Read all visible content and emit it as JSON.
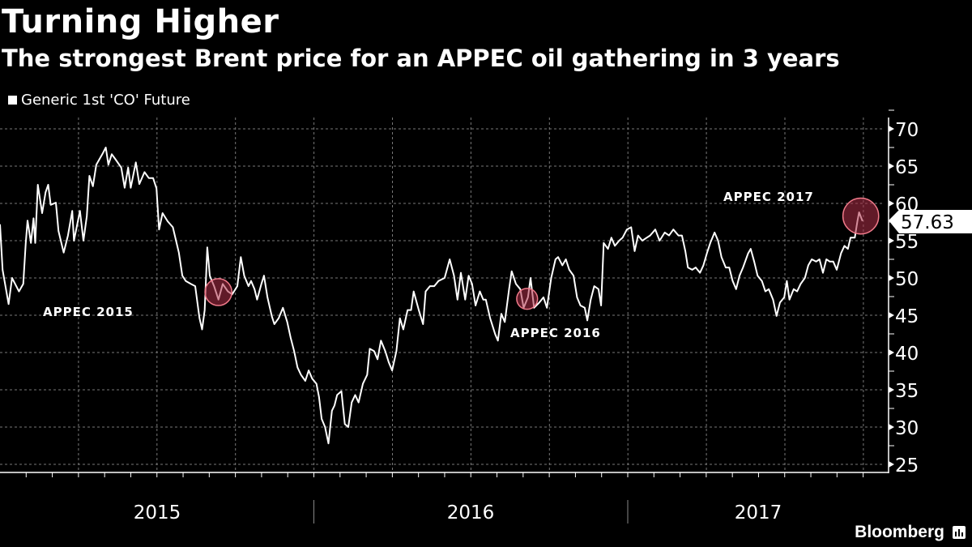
{
  "colors": {
    "background": "#000000",
    "line": "#ffffff",
    "highlight_fill": "#b03048",
    "highlight_stroke": "#f07a8a",
    "tag_bg": "#ffffff",
    "tag_text": "#000000"
  },
  "chart_data": {
    "type": "line",
    "title": "Turning Higher",
    "subtitle": "The strongest Brent price for an APPEC oil gathering in 3 years",
    "legend": [
      {
        "label": "Generic 1st 'CO' Future",
        "placement": "top-left"
      }
    ],
    "x_unit": "days since 2015-01-01",
    "xlim": [
      0,
      1003
    ],
    "ylim": [
      24,
      71.5
    ],
    "yticks": [
      25,
      30,
      35,
      40,
      45,
      50,
      55,
      60,
      65,
      70
    ],
    "xtick_labels": [
      "2015",
      "2016",
      "2017"
    ],
    "grid": true,
    "last_value_label": "57.63",
    "series": [
      {
        "name": "Generic 1st 'CO' Future",
        "x": [
          0,
          3,
          10,
          14,
          22,
          27,
          30,
          32,
          36,
          39,
          41,
          44,
          49,
          53,
          56,
          59,
          65,
          68,
          74,
          79,
          84,
          86,
          93,
          97,
          101,
          104,
          108,
          112,
          119,
          123,
          126,
          130,
          135,
          141,
          145,
          149,
          152,
          158,
          162,
          168,
          173,
          178,
          182,
          185,
          189,
          195,
          201,
          208,
          212,
          216,
          222,
          227,
          232,
          235,
          238,
          241,
          244,
          249,
          254,
          259,
          265,
          270,
          276,
          280,
          284,
          289,
          292,
          296,
          299,
          304,
          307,
          311,
          316,
          319,
          324,
          329,
          334,
          338,
          342,
          346,
          350,
          355,
          359,
          363,
          368,
          371,
          374,
          378,
          382,
          386,
          389,
          392,
          397,
          401,
          405,
          409,
          413,
          417,
          422,
          427,
          430,
          435,
          439,
          443,
          448,
          452,
          456,
          461,
          465,
          469,
          474,
          478,
          481,
          487,
          492,
          495,
          500,
          505,
          510,
          517,
          523,
          528,
          532,
          536,
          541,
          545,
          549,
          553,
          558,
          562,
          565,
          570,
          576,
          579,
          583,
          587,
          592,
          595,
          600,
          605,
          609,
          614,
          617,
          621,
          627,
          632,
          636,
          641,
          646,
          649,
          654,
          658,
          662,
          667,
          671,
          675,
          680,
          683,
          687,
          691,
          696,
          699,
          702,
          707,
          711,
          715,
          720,
          724,
          729,
          734,
          738,
          742,
          747,
          752,
          756,
          762,
          767,
          773,
          778,
          783,
          789,
          793,
          797,
          800,
          805,
          809,
          814,
          818,
          822,
          826,
          831,
          835,
          839,
          844,
          848,
          852,
          856,
          860,
          864,
          870,
          873,
          877,
          881,
          886,
          890,
          894,
          899,
          903,
          907,
          912,
          915,
          918,
          923,
          927,
          931,
          936,
          940,
          944,
          949,
          953,
          957,
          961,
          965,
          969,
          973,
          978,
          982,
          986,
          989,
          994,
          997,
          999,
          1003
        ],
        "y": [
          57.2,
          51.1,
          46.5,
          50,
          48.2,
          49.2,
          54.7,
          57.7,
          54.7,
          58,
          54.7,
          62.5,
          58.7,
          61.5,
          62.5,
          59.8,
          60.1,
          56.3,
          53.4,
          55.7,
          59,
          55,
          59,
          55,
          58.3,
          63.7,
          62.3,
          65.2,
          66.6,
          67.5,
          65.2,
          66.6,
          65.8,
          64.8,
          62.1,
          64.8,
          62.1,
          65.5,
          62.6,
          64.2,
          63.4,
          63.4,
          62,
          56.5,
          58.7,
          57.6,
          56.8,
          53.4,
          50.3,
          49.6,
          49.2,
          48.9,
          44.6,
          43.1,
          45.7,
          54.1,
          50.3,
          48.9,
          47.1,
          49.2,
          48.2,
          47.8,
          48.9,
          52.8,
          50.3,
          48.9,
          49.6,
          48.5,
          47.1,
          49.2,
          50.3,
          47.4,
          44.9,
          43.8,
          44.6,
          46,
          44.1,
          42,
          40.2,
          38,
          37,
          36.2,
          37.6,
          36.5,
          35.8,
          34,
          31.1,
          30,
          27.8,
          32.2,
          32.9,
          34.3,
          34.8,
          30.4,
          30,
          33.3,
          34.3,
          33.3,
          35.8,
          37,
          40.5,
          40.2,
          39.1,
          41.6,
          40.2,
          38.7,
          37.6,
          40.2,
          44.6,
          43.1,
          45.7,
          45.7,
          48.2,
          45.7,
          43.8,
          48.2,
          48.9,
          48.9,
          49.6,
          50,
          52.5,
          50.3,
          47.1,
          50.7,
          47.1,
          50.3,
          49.2,
          46.3,
          48.2,
          47.1,
          47.1,
          44.6,
          42.4,
          41.6,
          45.2,
          44.1,
          48.5,
          50.9,
          49.2,
          48.5,
          46,
          47.4,
          50,
          46,
          46.7,
          47.4,
          46,
          50,
          52.5,
          52.8,
          51.7,
          52.5,
          51.1,
          50.3,
          47.4,
          46.3,
          46,
          44.3,
          47.1,
          48.9,
          48.5,
          46.3,
          54.7,
          53.9,
          55.4,
          54.3,
          55,
          55.4,
          56.5,
          56.8,
          53.6,
          55.7,
          55,
          55.4,
          55.7,
          56.5,
          55,
          56.1,
          55.7,
          56.5,
          55.7,
          55.7,
          53.6,
          51.4,
          51.1,
          51.4,
          50.7,
          51.7,
          53.3,
          54.7,
          56.1,
          55,
          52.8,
          51.4,
          51.4,
          49.6,
          48.5,
          50.3,
          51.4,
          53.3,
          53.9,
          52.2,
          50.3,
          49.6,
          48.2,
          48.5,
          47.1,
          44.9,
          46.7,
          47.4,
          49.6,
          47.1,
          48.5,
          48.2,
          49.2,
          50,
          51.7,
          52.5,
          52.2,
          52.5,
          50.7,
          52.5,
          52.2,
          52.2,
          51.1,
          53.3,
          54.3,
          53.9,
          55.4,
          55.4,
          57.6,
          58.8,
          57.63
        ]
      }
    ],
    "annotations": [
      {
        "label": "APPEC 2015",
        "day": 254,
        "value": 48.1,
        "radius_value": 1.8
      },
      {
        "label": "APPEC 2016",
        "day": 613,
        "value": 47.2,
        "radius_value": 1.4
      },
      {
        "label": "APPEC 2017",
        "day": 1001,
        "value": 58.3,
        "radius_value": 2.4
      }
    ]
  },
  "footer": {
    "brand": "Bloomberg"
  }
}
